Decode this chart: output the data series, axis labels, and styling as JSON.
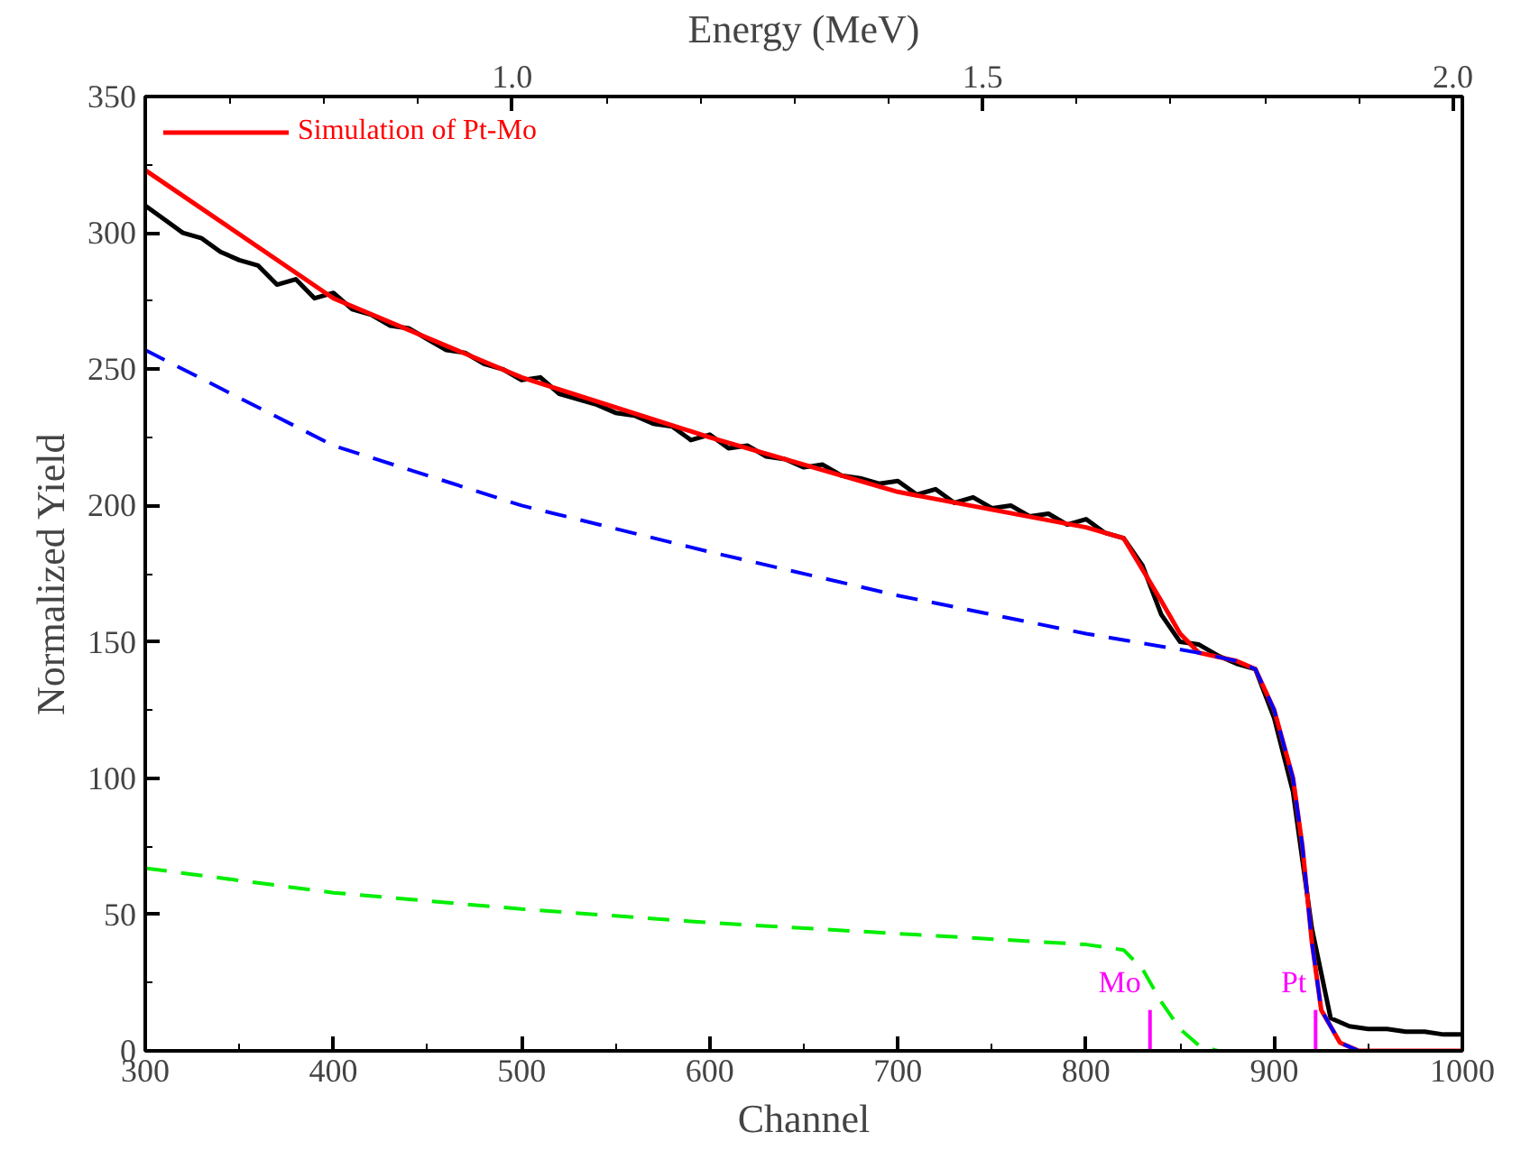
{
  "chart_data": {
    "type": "line",
    "xlabel": "Channel",
    "ylabel": "Normalized Yield",
    "x2label": "Energy (MeV)",
    "xlim": [
      300,
      1000
    ],
    "xticks": [
      300,
      400,
      500,
      600,
      700,
      800,
      900,
      1000
    ],
    "ylim": [
      0,
      350
    ],
    "yticks": [
      0,
      50,
      100,
      150,
      200,
      250,
      300,
      350
    ],
    "x2lim": [
      0.61,
      2.01
    ],
    "x2ticks": [
      {
        "value": 1.0,
        "label": "1.0"
      },
      {
        "value": 1.5,
        "label": "1.5"
      },
      {
        "value": 2.0,
        "label": "2.0"
      }
    ],
    "grid": false,
    "legend": "top left",
    "marker": "none",
    "series": [
      {
        "color": "#000000",
        "line_style": "solid",
        "x": [
          300,
          310,
          320,
          330,
          340,
          350,
          360,
          370,
          380,
          390,
          400,
          410,
          420,
          430,
          440,
          450,
          460,
          470,
          480,
          490,
          500,
          510,
          520,
          530,
          540,
          550,
          560,
          570,
          580,
          590,
          600,
          610,
          620,
          630,
          640,
          650,
          660,
          670,
          680,
          690,
          700,
          710,
          720,
          730,
          740,
          750,
          760,
          770,
          780,
          790,
          800,
          810,
          820,
          830,
          840,
          850,
          860,
          870,
          880,
          890,
          900,
          910,
          920,
          930,
          940,
          950,
          960,
          970,
          980,
          990,
          1000
        ],
        "values": [
          310,
          305,
          300,
          298,
          293,
          290,
          288,
          281,
          283,
          276,
          278,
          272,
          270,
          266,
          265,
          261,
          257,
          256,
          252,
          250,
          246,
          247,
          241,
          239,
          237,
          234,
          233,
          230,
          229,
          224,
          226,
          221,
          222,
          218,
          217,
          214,
          215,
          211,
          210,
          208,
          209,
          204,
          206,
          201,
          203,
          199,
          200,
          196,
          197,
          193,
          195,
          190,
          188,
          178,
          160,
          150,
          149,
          145,
          142,
          140,
          122,
          95,
          45,
          12,
          9,
          8,
          8,
          7,
          7,
          6,
          6
        ]
      },
      {
        "name": "Simulation of Pt-Mo",
        "color": "#ff0000",
        "line_style": "solid",
        "x": [
          300,
          400,
          500,
          600,
          700,
          800,
          820,
          840,
          850,
          860,
          880,
          890,
          900,
          910,
          915,
          920,
          925,
          935,
          945,
          1000
        ],
        "values": [
          323,
          276,
          247,
          225,
          205,
          192,
          188,
          165,
          153,
          146,
          143,
          140,
          125,
          100,
          75,
          40,
          15,
          3,
          0,
          0
        ]
      },
      {
        "color": "#0000ff",
        "line_style": "dashed",
        "x": [
          300,
          400,
          500,
          600,
          700,
          800,
          860,
          880,
          890,
          900,
          910,
          915,
          920,
          925,
          935,
          945
        ],
        "values": [
          257,
          222,
          200,
          183,
          167,
          153,
          146,
          143,
          140,
          125,
          100,
          75,
          40,
          15,
          3,
          0
        ]
      },
      {
        "color": "#00ee00",
        "line_style": "dashed",
        "x": [
          300,
          400,
          500,
          600,
          700,
          800,
          820,
          830,
          840,
          850,
          860,
          870
        ],
        "values": [
          67,
          58,
          52,
          47,
          43,
          39,
          37,
          30,
          18,
          8,
          2,
          0
        ]
      }
    ],
    "annotations": [
      {
        "text": "Mo",
        "x": 834,
        "y": 25
      },
      {
        "text": "Pt",
        "x": 922,
        "y": 25
      }
    ]
  }
}
